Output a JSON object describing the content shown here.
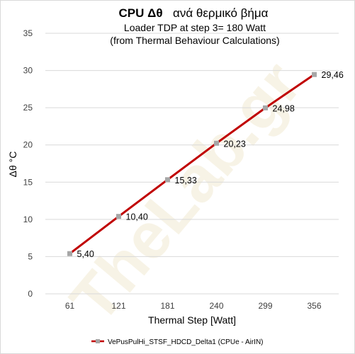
{
  "title": {
    "bold": "CPU  Δθ",
    "rest": "ανά θερμικό βήμα"
  },
  "subtitle": [
    "Loader TDP at step 3= 180 Watt",
    "(from Thermal Behaviour Calculations)"
  ],
  "watermark": "TheLab.gr",
  "colors": {
    "line": "#c00000",
    "marker": "#a6a6a6",
    "grid": "#d9d9d9",
    "watermark": "#f2ead2"
  },
  "chart_data": {
    "type": "line",
    "title": "CPU  Δθ   ανά θερμικό βήμα",
    "subtitle": "Loader TDP at step 3= 180 Watt (from Thermal Behaviour Calculations)",
    "xlabel": "Thermal Step [Watt]",
    "ylabel": "Δθ °C",
    "categories": [
      "61",
      "121",
      "181",
      "240",
      "299",
      "356"
    ],
    "series": [
      {
        "name": "VePusPulHi_STSF_HDCD_Delta1 (CPUe - AirIN)",
        "values": [
          5.4,
          10.4,
          15.33,
          20.23,
          24.98,
          29.46
        ],
        "labels": [
          "5,40",
          "10,40",
          "15,33",
          "20,23",
          "24,98",
          "29,46"
        ]
      }
    ],
    "ylim": [
      0,
      35
    ],
    "yticks": [
      "0",
      "5",
      "10",
      "15",
      "20",
      "25",
      "30",
      "35"
    ],
    "grid": "horizontal",
    "legend": "bottom"
  }
}
